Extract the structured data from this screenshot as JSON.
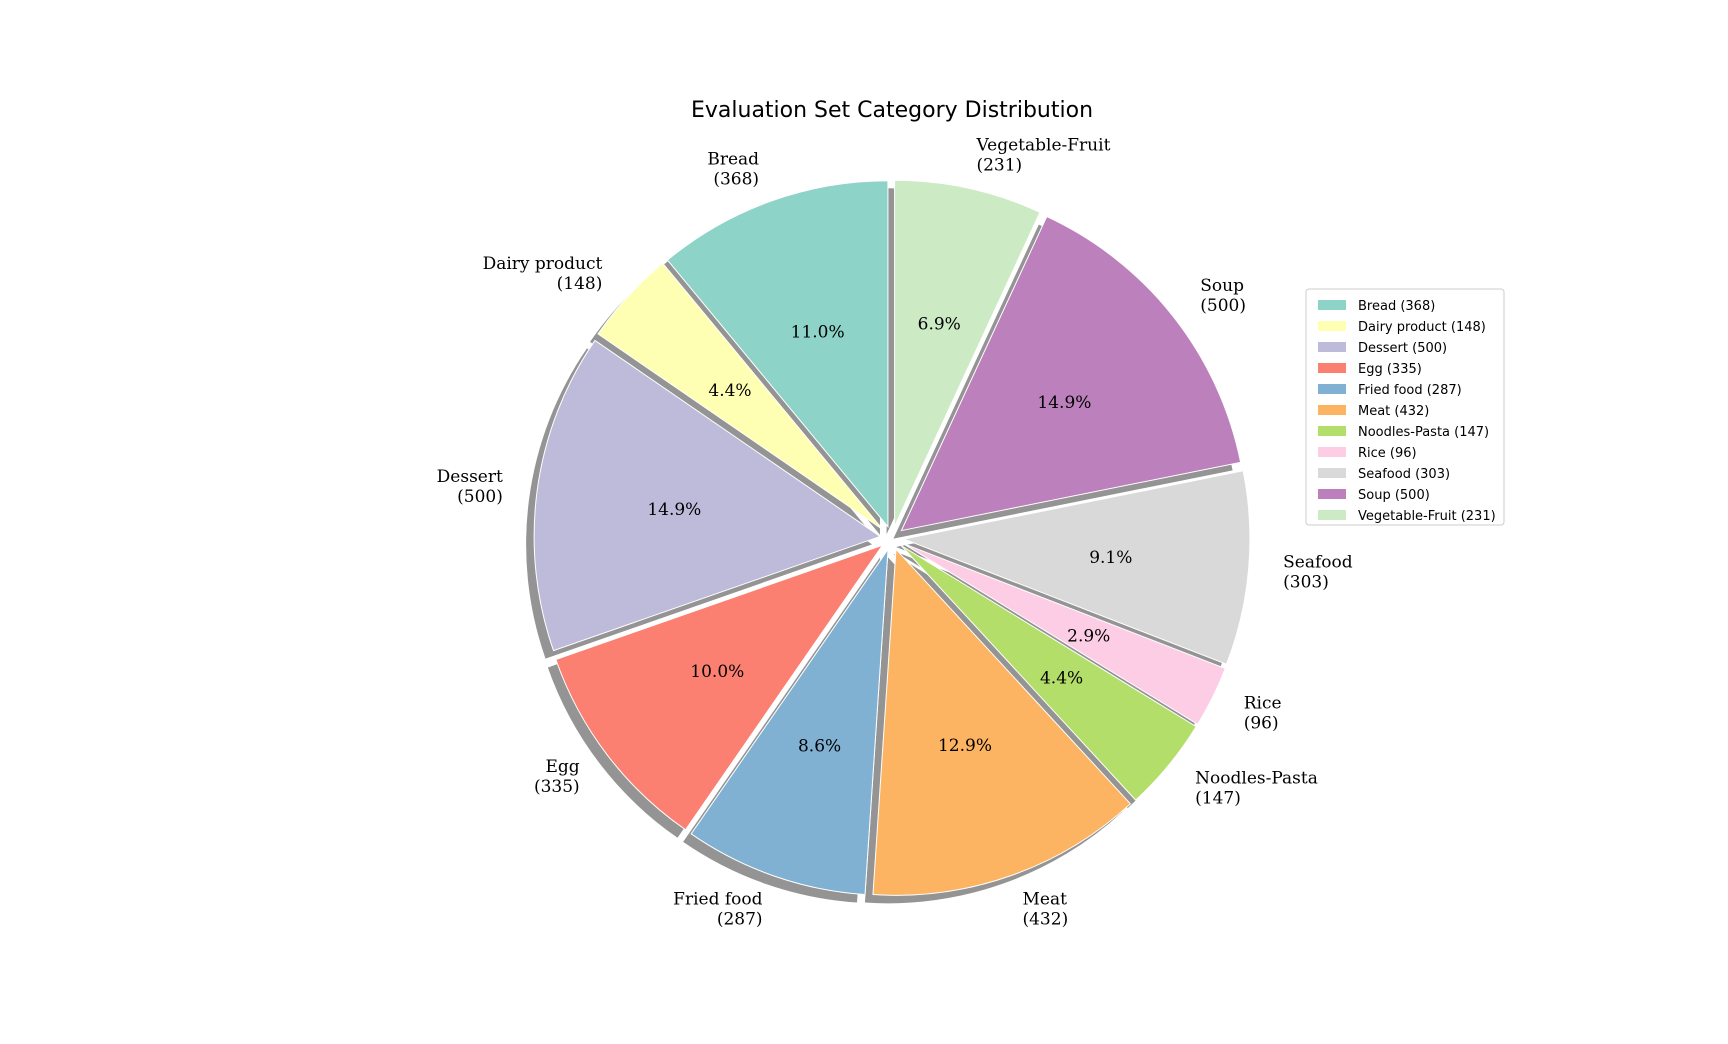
{
  "chart_data": {
    "type": "pie",
    "title": "Evaluation Set Category Distribution",
    "categories": [
      "Bread",
      "Dairy product",
      "Dessert",
      "Egg",
      "Fried food",
      "Meat",
      "Noodles-Pasta",
      "Rice",
      "Seafood",
      "Soup",
      "Vegetable-Fruit"
    ],
    "values": [
      368,
      148,
      500,
      335,
      287,
      432,
      147,
      96,
      303,
      500,
      231
    ],
    "percent_labels": [
      "11.0%",
      "4.4%",
      "14.9%",
      "10.0%",
      "8.6%",
      "12.9%",
      "4.4%",
      "2.9%",
      "9.1%",
      "14.9%",
      "6.9%"
    ],
    "outer_labels": [
      [
        "Bread",
        "(368)"
      ],
      [
        "Dairy product",
        "(148)"
      ],
      [
        "Dessert",
        "(500)"
      ],
      [
        "Egg",
        "(335)"
      ],
      [
        "Fried food",
        "(287)"
      ],
      [
        "Meat",
        "(432)"
      ],
      [
        "Noodles-Pasta",
        "(147)"
      ],
      [
        "Rice",
        "(96)"
      ],
      [
        "Seafood",
        "(303)"
      ],
      [
        "Soup",
        "(500)"
      ],
      [
        "Vegetable-Fruit",
        "(231)"
      ]
    ],
    "legend": {
      "placement": "right",
      "entries": [
        "Bread (368)",
        "Dairy product (148)",
        "Dessert (500)",
        "Egg (335)",
        "Fried food (287)",
        "Meat (432)",
        "Noodles-Pasta (147)",
        "Rice (96)",
        "Seafood (303)",
        "Soup (500)",
        "Vegetable-Fruit (231)"
      ]
    },
    "colors": [
      "#8dd3c7",
      "#ffffb3",
      "#bebada",
      "#fb8072",
      "#80b1d3",
      "#fdb462",
      "#b3de69",
      "#fccde5",
      "#d9d9d9",
      "#bc80bd",
      "#ccebc5"
    ],
    "start_angle_deg": 90,
    "direction": "counterclockwise",
    "shadow": true,
    "exploded": true
  }
}
